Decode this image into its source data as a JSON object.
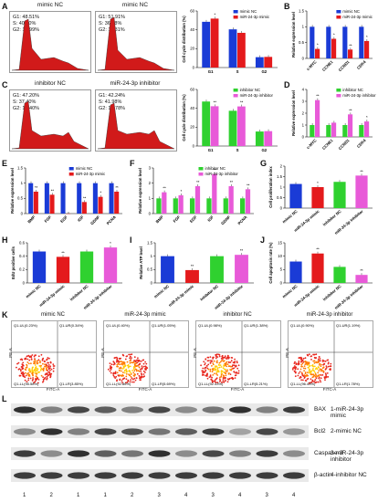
{
  "panels": {
    "A": {
      "letter": "A",
      "flow": [
        {
          "title": "mimic NC",
          "stats": [
            "G1: 48.51%",
            "S: 40.50%",
            "G2: 10.99%"
          ]
        },
        {
          "title": "miR-24-3p mimic",
          "stats": [
            "G1: 51.91%",
            "S: 36.78%",
            "G2: 11.31%"
          ]
        }
      ],
      "bar": {
        "ylabel": "Cell cycle distribution (%)",
        "categories": [
          "G1",
          "S",
          "G2"
        ],
        "legend": [
          "mimic NC",
          "miR-24-3p mimic"
        ],
        "series": [
          {
            "name": "mimic NC",
            "values": [
              48.5,
              40.5,
              11.0
            ],
            "color": "#1a3bd6"
          },
          {
            "name": "miR-24-3p mimic",
            "values": [
              51.9,
              36.8,
              11.3
            ],
            "color": "#e41a1c"
          }
        ],
        "stars": [
          "*",
          "",
          ""
        ]
      }
    },
    "B": {
      "letter": "B",
      "ylabel": "Relative expression level",
      "categories": [
        "c-MYC",
        "CCNE1",
        "CCND1",
        "CDK4"
      ],
      "legend": [
        "mimic NC",
        "miR-24-3p mimic"
      ],
      "series": [
        {
          "name": "mimic NC",
          "values": [
            1.0,
            1.0,
            1.0,
            1.0
          ],
          "color": "#1a3bd6"
        },
        {
          "name": "miR-24-3p mimic",
          "values": [
            0.3,
            0.62,
            0.28,
            0.55
          ],
          "color": "#e41a1c"
        }
      ],
      "stars": [
        "*",
        "*",
        "**",
        "*"
      ]
    },
    "C": {
      "letter": "C",
      "flow": [
        {
          "title": "inhibitor NC",
          "stats": [
            "G1: 47.20%",
            "S: 37.40%",
            "G2: 15.40%"
          ]
        },
        {
          "title": "miR-24-3p inhibitor",
          "stats": [
            "G1: 42.24%",
            "S: 41.98%",
            "G2: 15.78%"
          ]
        }
      ],
      "bar": {
        "ylabel": "Cell cycle distribution (%)",
        "categories": [
          "G1",
          "S",
          "G2"
        ],
        "legend": [
          "inhibitor NC",
          "miR-24-3p inhibitor"
        ],
        "series": [
          {
            "name": "inhibitor NC",
            "values": [
              47.2,
              37.4,
              15.4
            ],
            "color": "#2fd12f"
          },
          {
            "name": "miR-24-3p inhibitor",
            "values": [
              42.2,
              42.0,
              15.8
            ],
            "color": "#e85ad8"
          }
        ],
        "stars": [
          "**",
          "**",
          ""
        ]
      }
    },
    "D": {
      "letter": "D",
      "ylabel": "Relative expression level",
      "categories": [
        "c-MYC",
        "CCNE1",
        "CCND1",
        "CDK4"
      ],
      "legend": [
        "inhibitor NC",
        "miR-24-3p inhibitor"
      ],
      "series": [
        {
          "name": "inhibitor NC",
          "values": [
            1.0,
            1.0,
            1.0,
            1.0
          ],
          "color": "#2fd12f"
        },
        {
          "name": "miR-24-3p inhibitor",
          "values": [
            3.1,
            1.2,
            1.9,
            1.3
          ],
          "color": "#e85ad8"
        }
      ],
      "stars": [
        "**",
        "",
        "**",
        "*"
      ]
    },
    "E": {
      "letter": "E",
      "ylabel": "Relative expression level",
      "categories": [
        "BMP",
        "FGF",
        "EGF",
        "IGF",
        "GDNF",
        "PCNA"
      ],
      "legend": [
        "mimic NC",
        "miR-24-3p mimic"
      ],
      "series": [
        {
          "name": "mimic NC",
          "values": [
            1.0,
            1.0,
            1.0,
            1.0,
            1.0,
            1.0
          ],
          "color": "#1a3bd6"
        },
        {
          "name": "miR-24-3p mimic",
          "values": [
            0.72,
            0.62,
            0.0,
            0.38,
            0.55,
            0.72
          ],
          "color": "#e41a1c"
        }
      ],
      "stars": [
        "**",
        "**",
        "",
        "**",
        "*",
        "**"
      ]
    },
    "F": {
      "letter": "F",
      "ylabel": "Relative expression level",
      "categories": [
        "BMP",
        "FGF",
        "EGF",
        "IGF",
        "GDNF",
        "PCNA"
      ],
      "legend": [
        "inhibitor NC",
        "miR-24-3p inhibitor"
      ],
      "series": [
        {
          "name": "inhibitor NC",
          "values": [
            1.0,
            1.0,
            1.0,
            1.0,
            1.0,
            1.0
          ],
          "color": "#2fd12f"
        },
        {
          "name": "miR-24-3p inhibitor",
          "values": [
            1.4,
            1.2,
            1.8,
            2.6,
            1.8,
            1.6
          ],
          "color": "#e85ad8"
        }
      ],
      "stars": [
        "**",
        "*",
        "**",
        "**",
        "**",
        "**"
      ]
    },
    "G": {
      "letter": "G",
      "ylabel": "Cell proliferation index",
      "categories": [
        "mimic NC",
        "miR-24-3p mimic",
        "inhibitor NC",
        "miR-24-3p inhibitor"
      ],
      "values": [
        1.15,
        1.0,
        1.25,
        1.55
      ],
      "colors": [
        "#1a3bd6",
        "#e41a1c",
        "#2fd12f",
        "#e85ad8"
      ],
      "stars": [
        "",
        "*",
        "",
        "**"
      ]
    },
    "H": {
      "letter": "H",
      "ylabel": "EdU positive cells",
      "categories": [
        "mimic NC",
        "miR-24-3p mimic",
        "inhibitor NC",
        "miR-24-3p inhibitor"
      ],
      "values": [
        0.47,
        0.39,
        0.47,
        0.53
      ],
      "colors": [
        "#1a3bd6",
        "#e41a1c",
        "#2fd12f",
        "#e85ad8"
      ],
      "stars": [
        "",
        "**",
        "",
        "*"
      ]
    },
    "I": {
      "letter": "I",
      "ylabel": "Relative ATP level",
      "categories": [
        "mimic NC",
        "miR-24-3p mimic",
        "inhibitor NC",
        "miR-24-3p inhibitor"
      ],
      "values": [
        1.0,
        0.48,
        1.0,
        1.05
      ],
      "colors": [
        "#1a3bd6",
        "#e41a1c",
        "#2fd12f",
        "#e85ad8"
      ],
      "stars": [
        "",
        "**",
        "",
        "**"
      ]
    },
    "J": {
      "letter": "J",
      "ylabel": "Cell apoptosis rate (%)",
      "categories": [
        "mimic NC",
        "miR-24-3p mimic",
        "inhibitor NC",
        "miR-24-3p inhibitor"
      ],
      "values": [
        8.0,
        11.0,
        6.0,
        3.0
      ],
      "colors": [
        "#1a3bd6",
        "#e41a1c",
        "#2fd12f",
        "#e85ad8"
      ],
      "stars": [
        "",
        "**",
        "",
        "**"
      ]
    },
    "K": {
      "letter": "K",
      "plots": [
        {
          "title": "mimic NC",
          "q": [
            "Q1-UL(0.23%)",
            "Q1-UR(0.34%)",
            "Q1-LL(95.58%)",
            "Q1-LR(3.85%)"
          ]
        },
        {
          "title": "miR-24-3p mimic",
          "q": [
            "Q1-UL(0.40%)",
            "Q1-UR(1.05%)",
            "Q1-LL(92.86%)",
            "Q1-LR(5.69%)"
          ]
        },
        {
          "title": "inhibitor NC",
          "q": [
            "Q1-UL(0.98%)",
            "Q1-UR(1.38%)",
            "Q1-LL(92.43%)",
            "Q1-LR(5.21%)"
          ]
        },
        {
          "title": "miR-24-3p inhibitor",
          "q": [
            "Q1-UL(0.90%)",
            "Q1-UR(1.19%)",
            "Q1-LL(96.43%)",
            "Q1-LR(1.78%)"
          ]
        }
      ],
      "xaxis": "FITC-A",
      "yaxis": "PE-A"
    },
    "L": {
      "letter": "L",
      "rows": [
        "BAX",
        "Bcl2",
        "Caspase-3",
        "β-actin"
      ],
      "legend": [
        "1-miR-24-3p mimic",
        "2-mimic NC",
        "3-miR-24-3p inhibitor",
        "4-inhibitor NC"
      ],
      "lanes": [
        "1",
        "2",
        "1",
        "1",
        "2",
        "3",
        "4",
        "3",
        "4",
        "3",
        "4"
      ]
    }
  },
  "chart_data": [
    {
      "type": "bar",
      "title": "A",
      "categories": [
        "G1",
        "S",
        "G2"
      ],
      "ylabel": "Cell cycle distribution (%)",
      "ylim": [
        0,
        60
      ],
      "series": [
        {
          "name": "mimic NC",
          "values": [
            48.5,
            40.5,
            11.0
          ]
        },
        {
          "name": "miR-24-3p mimic",
          "values": [
            51.9,
            36.8,
            11.3
          ]
        }
      ]
    },
    {
      "type": "bar",
      "title": "B",
      "categories": [
        "c-MYC",
        "CCNE1",
        "CCND1",
        "CDK4"
      ],
      "ylabel": "Relative expression level",
      "ylim": [
        0,
        1.5
      ],
      "series": [
        {
          "name": "mimic NC",
          "values": [
            1.0,
            1.0,
            1.0,
            1.0
          ]
        },
        {
          "name": "miR-24-3p mimic",
          "values": [
            0.3,
            0.62,
            0.28,
            0.55
          ]
        }
      ]
    },
    {
      "type": "bar",
      "title": "C",
      "categories": [
        "G1",
        "S",
        "G2"
      ],
      "ylabel": "Cell cycle distribution (%)",
      "ylim": [
        0,
        60
      ],
      "series": [
        {
          "name": "inhibitor NC",
          "values": [
            47.2,
            37.4,
            15.4
          ]
        },
        {
          "name": "miR-24-3p inhibitor",
          "values": [
            42.2,
            42.0,
            15.8
          ]
        }
      ]
    },
    {
      "type": "bar",
      "title": "D",
      "categories": [
        "c-MYC",
        "CCNE1",
        "CCND1",
        "CDK4"
      ],
      "ylabel": "Relative expression level",
      "ylim": [
        0,
        4
      ],
      "series": [
        {
          "name": "inhibitor NC",
          "values": [
            1.0,
            1.0,
            1.0,
            1.0
          ]
        },
        {
          "name": "miR-24-3p inhibitor",
          "values": [
            3.1,
            1.2,
            1.9,
            1.3
          ]
        }
      ]
    },
    {
      "type": "bar",
      "title": "E",
      "categories": [
        "BMP",
        "FGF",
        "EGF",
        "IGF",
        "GDNF",
        "PCNA"
      ],
      "ylabel": "Relative expression level",
      "ylim": [
        0,
        1.5
      ],
      "series": [
        {
          "name": "mimic NC",
          "values": [
            1.0,
            1.0,
            1.0,
            1.0,
            1.0,
            1.0
          ]
        },
        {
          "name": "miR-24-3p mimic",
          "values": [
            0.72,
            0.62,
            0.0,
            0.38,
            0.55,
            0.72
          ]
        }
      ]
    },
    {
      "type": "bar",
      "title": "F",
      "categories": [
        "BMP",
        "FGF",
        "EGF",
        "IGF",
        "GDNF",
        "PCNA"
      ],
      "ylabel": "Relative expression level",
      "ylim": [
        0,
        3
      ],
      "series": [
        {
          "name": "inhibitor NC",
          "values": [
            1.0,
            1.0,
            1.0,
            1.0,
            1.0,
            1.0
          ]
        },
        {
          "name": "miR-24-3p inhibitor",
          "values": [
            1.4,
            1.2,
            1.8,
            2.6,
            1.8,
            1.6
          ]
        }
      ]
    },
    {
      "type": "bar",
      "title": "G",
      "categories": [
        "mimic NC",
        "miR-24-3p mimic",
        "inhibitor NC",
        "miR-24-3p inhibitor"
      ],
      "ylabel": "Cell proliferation index",
      "ylim": [
        0,
        2
      ],
      "values": [
        1.15,
        1.0,
        1.25,
        1.55
      ]
    },
    {
      "type": "bar",
      "title": "H",
      "categories": [
        "mimic NC",
        "miR-24-3p mimic",
        "inhibitor NC",
        "miR-24-3p inhibitor"
      ],
      "ylabel": "EdU positive cells",
      "ylim": [
        0,
        0.6
      ],
      "values": [
        0.47,
        0.39,
        0.47,
        0.53
      ]
    },
    {
      "type": "bar",
      "title": "I",
      "categories": [
        "mimic NC",
        "miR-24-3p mimic",
        "inhibitor NC",
        "miR-24-3p inhibitor"
      ],
      "ylabel": "Relative ATP level",
      "ylim": [
        0,
        1.5
      ],
      "values": [
        1.0,
        0.48,
        1.0,
        1.05
      ]
    },
    {
      "type": "bar",
      "title": "J",
      "categories": [
        "mimic NC",
        "miR-24-3p mimic",
        "inhibitor NC",
        "miR-24-3p inhibitor"
      ],
      "ylabel": "Cell apoptosis rate (%)",
      "ylim": [
        0,
        15
      ],
      "values": [
        8.0,
        11.0,
        6.0,
        3.0
      ]
    }
  ]
}
